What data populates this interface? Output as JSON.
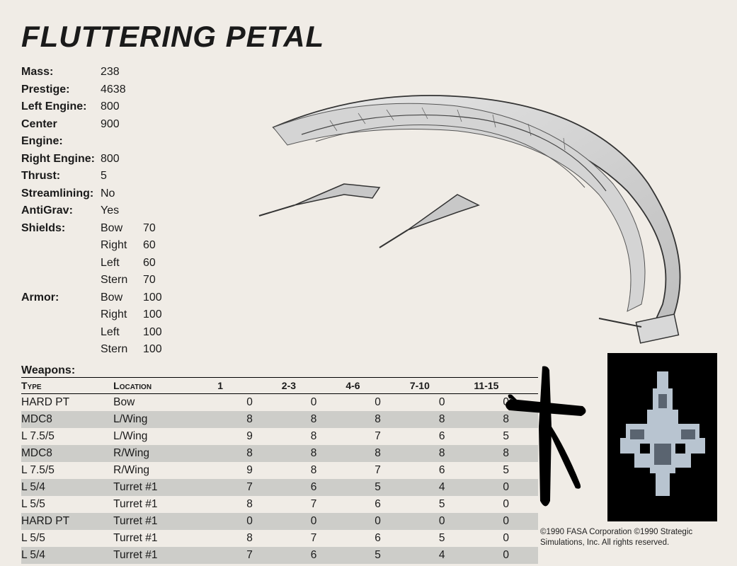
{
  "title": "FLUTTERING PETAL",
  "stats": {
    "simple": [
      {
        "label": "Mass:",
        "value": "238"
      },
      {
        "label": "Prestige:",
        "value": "4638"
      },
      {
        "label": "Left Engine:",
        "value": "800"
      },
      {
        "label": "Center Engine:",
        "value": "900"
      },
      {
        "label": "Right Engine:",
        "value": "800"
      },
      {
        "label": "Thrust:",
        "value": "5"
      },
      {
        "label": "Streamlining:",
        "value": "No"
      },
      {
        "label": "AntiGrav:",
        "value": "Yes"
      }
    ],
    "shields": {
      "label": "Shields:",
      "rows": [
        {
          "facing": "Bow",
          "value": "70"
        },
        {
          "facing": "Right",
          "value": "60"
        },
        {
          "facing": "Left",
          "value": "60"
        },
        {
          "facing": "Stern",
          "value": "70"
        }
      ]
    },
    "armor": {
      "label": "Armor:",
      "rows": [
        {
          "facing": "Bow",
          "value": "100"
        },
        {
          "facing": "Right",
          "value": "100"
        },
        {
          "facing": "Left",
          "value": "100"
        },
        {
          "facing": "Stern",
          "value": "100"
        }
      ]
    }
  },
  "weapons": {
    "label": "Weapons:",
    "headers": [
      "Type",
      "Location",
      "1",
      "2-3",
      "4-6",
      "7-10",
      "11-15"
    ],
    "rows": [
      {
        "type": "HARD PT",
        "loc": "Bow",
        "v": [
          "0",
          "0",
          "0",
          "0",
          "0"
        ],
        "shaded": false
      },
      {
        "type": "MDC8",
        "loc": "L/Wing",
        "v": [
          "8",
          "8",
          "8",
          "8",
          "8"
        ],
        "shaded": true
      },
      {
        "type": "L 7.5/5",
        "loc": "L/Wing",
        "v": [
          "9",
          "8",
          "7",
          "6",
          "5"
        ],
        "shaded": false
      },
      {
        "type": "MDC8",
        "loc": "R/Wing",
        "v": [
          "8",
          "8",
          "8",
          "8",
          "8"
        ],
        "shaded": true
      },
      {
        "type": "L 7.5/5",
        "loc": "R/Wing",
        "v": [
          "9",
          "8",
          "7",
          "6",
          "5"
        ],
        "shaded": false
      },
      {
        "type": "L 5/4",
        "loc": "Turret #1",
        "v": [
          "7",
          "6",
          "5",
          "4",
          "0"
        ],
        "shaded": true
      },
      {
        "type": "L 5/5",
        "loc": "Turret #1",
        "v": [
          "8",
          "7",
          "6",
          "5",
          "0"
        ],
        "shaded": false
      },
      {
        "type": "HARD PT",
        "loc": "Turret #1",
        "v": [
          "0",
          "0",
          "0",
          "0",
          "0"
        ],
        "shaded": true
      },
      {
        "type": "L 5/5",
        "loc": "Turret #1",
        "v": [
          "8",
          "7",
          "6",
          "5",
          "0"
        ],
        "shaded": false
      },
      {
        "type": "L 5/4",
        "loc": "Turret #1",
        "v": [
          "7",
          "6",
          "5",
          "4",
          "0"
        ],
        "shaded": true
      }
    ]
  },
  "copyright": "©1990 FASA Corporation ©1990 Strategic Simulations, Inc. All rights reserved.",
  "colors": {
    "page_bg": "#f0ece6",
    "text": "#1a1a1a",
    "shade": "#cdcdc9",
    "rule": "#000000"
  }
}
